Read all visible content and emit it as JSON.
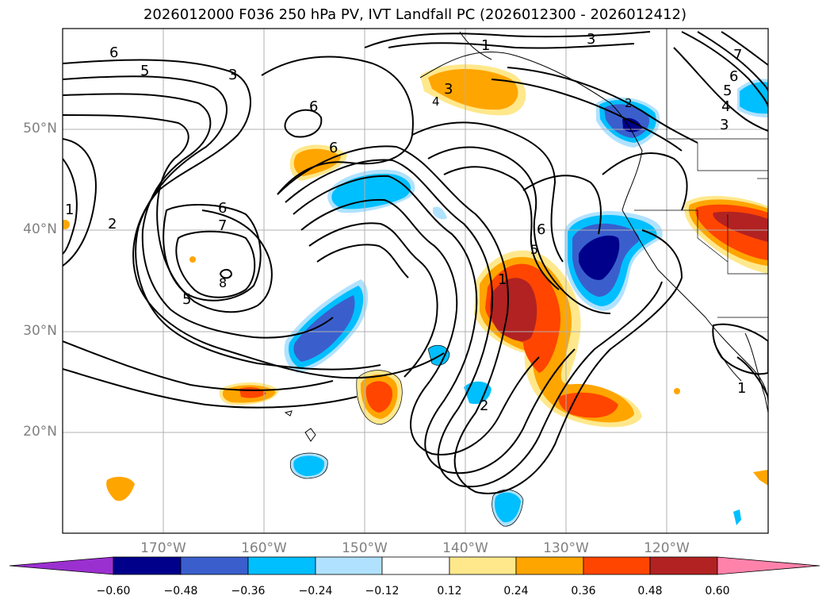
{
  "title": "2026012000 F036 250 hPa PV, IVT Landfall PC (2026012300 - 2026012412)",
  "latitude_labels": [
    "50°N",
    "40°N",
    "30°N",
    "20°N"
  ],
  "longitude_labels": [
    "170°W",
    "160°W",
    "150°W",
    "140°W",
    "130°W",
    "120°W"
  ],
  "colorbar": {
    "ticks": [
      "−0.60",
      "−0.48",
      "−0.36",
      "−0.24",
      "−0.12",
      "0.12",
      "0.24",
      "0.36",
      "0.48",
      "0.60"
    ],
    "colors": [
      "#9b30d0",
      "#00008b",
      "#3a5fcd",
      "#00bfff",
      "#b0e2ff",
      "#ffffff",
      "#ffe88c",
      "#ffa500",
      "#ff4500",
      "#b22222",
      "#ff82ab"
    ]
  },
  "contour_labels": [
    "1",
    "2",
    "3",
    "4",
    "5",
    "6",
    "7",
    "8"
  ]
}
